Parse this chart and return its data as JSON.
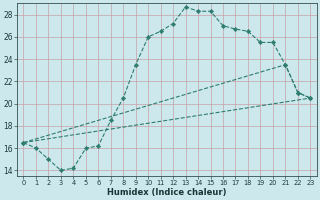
{
  "xlabel": "Humidex (Indice chaleur)",
  "bg_color": "#cde8ec",
  "grid_color": "#b0d4d8",
  "line_color": "#2e7d6e",
  "xlim": [
    -0.5,
    23.5
  ],
  "ylim": [
    13.5,
    29.0
  ],
  "xticks": [
    0,
    1,
    2,
    3,
    4,
    5,
    6,
    7,
    8,
    9,
    10,
    11,
    12,
    13,
    14,
    15,
    16,
    17,
    18,
    19,
    20,
    21,
    22,
    23
  ],
  "yticks": [
    14,
    16,
    18,
    20,
    22,
    24,
    26,
    28
  ],
  "series": [
    {
      "x": [
        0,
        1,
        2,
        3,
        4,
        5,
        6,
        7,
        8,
        9,
        10,
        11,
        12,
        13,
        14,
        15,
        16,
        17,
        18,
        19,
        20,
        21,
        22,
        23
      ],
      "y": [
        16.5,
        16.0,
        15.0,
        14.0,
        14.2,
        16.0,
        16.2,
        18.5,
        20.5,
        23.5,
        26.0,
        26.5,
        27.2,
        28.7,
        28.3,
        28.3,
        27.0,
        26.7,
        26.5,
        25.5,
        25.5,
        23.5,
        21.0,
        20.5
      ],
      "markers": true
    },
    {
      "x": [
        0,
        21,
        22,
        23
      ],
      "y": [
        16.5,
        23.5,
        21.0,
        20.5
      ],
      "markers": true
    },
    {
      "x": [
        0,
        23
      ],
      "y": [
        16.5,
        20.5
      ],
      "markers": false
    }
  ]
}
